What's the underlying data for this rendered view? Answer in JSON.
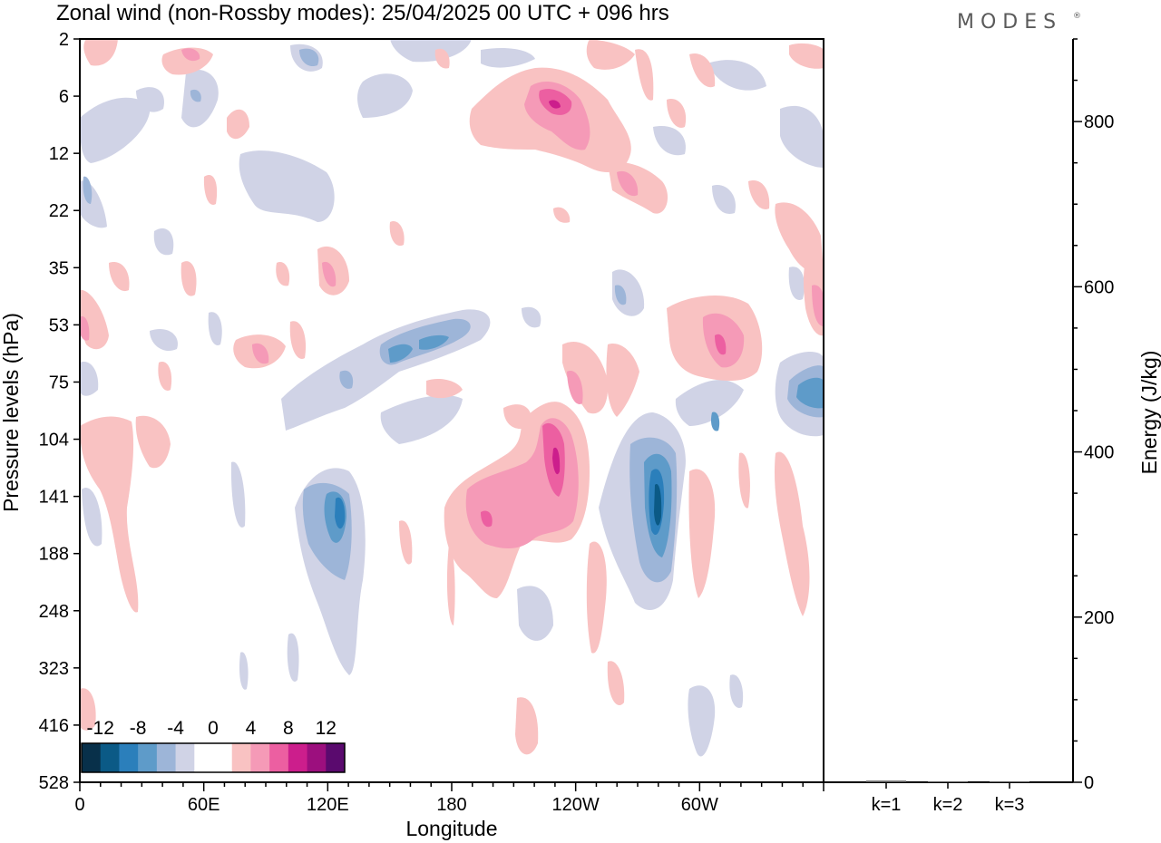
{
  "title": "Zonal wind (non-Rossby modes):  25/04/2025  00 UTC  + 096 hrs",
  "logo": "MODES",
  "chart_data": [
    {
      "type": "heatmap",
      "variable": "Zonal wind (non-Rossby modes)",
      "xlabel": "Longitude",
      "ylabel": "Pressure levels (hPa)",
      "x_ticks": [
        "0",
        "60E",
        "120E",
        "180",
        "120W",
        "60W"
      ],
      "y_ticks": [
        "2",
        "6",
        "12",
        "22",
        "35",
        "53",
        "75",
        "104",
        "141",
        "188",
        "248",
        "323",
        "416",
        "528"
      ],
      "colorbar": {
        "tick_labels": [
          "-12",
          "-8",
          "-4",
          "0",
          "4",
          "8",
          "12"
        ],
        "colors": [
          "#08304a",
          "#0b5a86",
          "#2b7fbb",
          "#5e9bc9",
          "#9db5d8",
          "#d0d3e6",
          "#ffffff",
          "#ffffff",
          "#f9c2c2",
          "#f59ab7",
          "#ec5fa1",
          "#cc1e8c",
          "#9c0f7e",
          "#5a0a6e"
        ]
      },
      "features": [
        {
          "lon": 225,
          "level": "141",
          "value": 7,
          "color": "#f59ab7"
        },
        {
          "lon": 240,
          "level": "116",
          "value": 8,
          "color": "#ec5fa1"
        },
        {
          "lon": 288,
          "level": "141",
          "value": -11,
          "color": "#0b5a86"
        },
        {
          "lon": 126,
          "level": "141",
          "value": -8,
          "color": "#2b7fbb"
        },
        {
          "lon": 238,
          "level": "6",
          "value": 9,
          "color": "#ec5fa1"
        },
        {
          "lon": 312,
          "level": "53",
          "value": 7,
          "color": "#f59ab7"
        },
        {
          "lon": 355,
          "level": "75",
          "value": -6,
          "color": "#5e9bc9"
        },
        {
          "lon": 155,
          "level": "53",
          "value": -6,
          "color": "#5e9bc9"
        }
      ]
    },
    {
      "type": "bar",
      "categories": [
        "k=1",
        "k=2",
        "k=3"
      ],
      "values": [
        2,
        1,
        1
      ],
      "ylabel": "Energy (J/kg)",
      "ylim": [
        0,
        900
      ],
      "y_ticks": [
        0,
        200,
        400,
        600,
        800
      ]
    }
  ]
}
